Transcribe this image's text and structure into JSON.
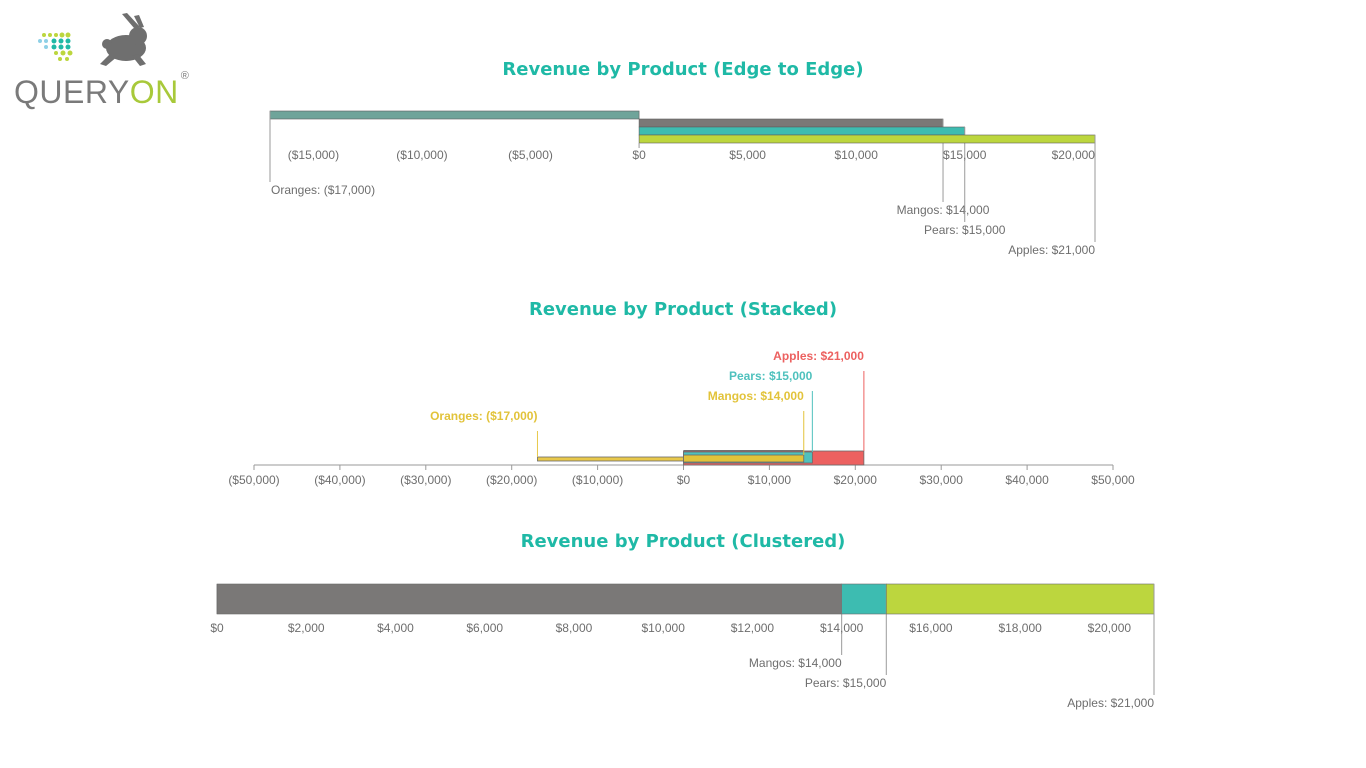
{
  "brand": {
    "name_main": "QUERY",
    "name_accent": "ON",
    "registered_mark": "®"
  },
  "colors": {
    "title": "#1fb9a6",
    "oranges_edge": "#6fa49a",
    "mangos": "#7a7877",
    "pears": "#3dbcb1",
    "apples": "#bcd63e",
    "stacked_apples": "#ec6160",
    "stacked_mangos": "#e2c33a",
    "stacked_pears": "#4fc1bd",
    "stacked_oranges": "#e8c84a",
    "axis": "#9a9a9a",
    "label_text": "#6e6e6e"
  },
  "chart_data": [
    {
      "type": "bar",
      "title": "Revenue by Product (Edge to Edge)",
      "orientation": "horizontal",
      "series": [
        {
          "name": "Oranges",
          "value": -17000,
          "label": "Oranges: ($17,000)"
        },
        {
          "name": "Mangos",
          "value": 14000,
          "label": "Mangos: $14,000"
        },
        {
          "name": "Pears",
          "value": 15000,
          "label": "Pears: $15,000"
        },
        {
          "name": "Apples",
          "value": 21000,
          "label": "Apples: $21,000"
        }
      ],
      "xlim": [
        -17000,
        21000
      ],
      "ticks": [
        -15000,
        -10000,
        -5000,
        0,
        5000,
        10000,
        15000,
        20000
      ],
      "tick_labels": [
        "($15,000)",
        "($10,000)",
        "($5,000)",
        "$0",
        "$5,000",
        "$10,000",
        "$15,000",
        "$20,000"
      ]
    },
    {
      "type": "bar",
      "title": "Revenue by Product (Stacked)",
      "orientation": "horizontal",
      "series": [
        {
          "name": "Apples",
          "value": 21000,
          "label": "Apples: $21,000"
        },
        {
          "name": "Pears",
          "value": 15000,
          "label": "Pears: $15,000"
        },
        {
          "name": "Mangos",
          "value": 14000,
          "label": "Mangos: $14,000"
        },
        {
          "name": "Oranges",
          "value": -17000,
          "label": "Oranges: ($17,000)"
        }
      ],
      "xlim": [
        -50000,
        50000
      ],
      "ticks": [
        -50000,
        -40000,
        -30000,
        -20000,
        -10000,
        0,
        10000,
        20000,
        30000,
        40000,
        50000
      ],
      "tick_labels": [
        "($50,000)",
        "($40,000)",
        "($30,000)",
        "($20,000)",
        "($10,000)",
        "$0",
        "$10,000",
        "$20,000",
        "$30,000",
        "$40,000",
        "$50,000"
      ]
    },
    {
      "type": "bar",
      "title": "Revenue by Product (Clustered)",
      "orientation": "horizontal",
      "series": [
        {
          "name": "Mangos",
          "value": 14000,
          "label": "Mangos: $14,000"
        },
        {
          "name": "Pears",
          "value": 15000,
          "label": "Pears: $15,000"
        },
        {
          "name": "Apples",
          "value": 21000,
          "label": "Apples: $21,000"
        }
      ],
      "xlim": [
        0,
        21000
      ],
      "ticks": [
        0,
        2000,
        4000,
        6000,
        8000,
        10000,
        12000,
        14000,
        16000,
        18000,
        20000
      ],
      "tick_labels": [
        "$0",
        "$2,000",
        "$4,000",
        "$6,000",
        "$8,000",
        "$10,000",
        "$12,000",
        "$14,000",
        "$16,000",
        "$18,000",
        "$20,000"
      ]
    }
  ]
}
